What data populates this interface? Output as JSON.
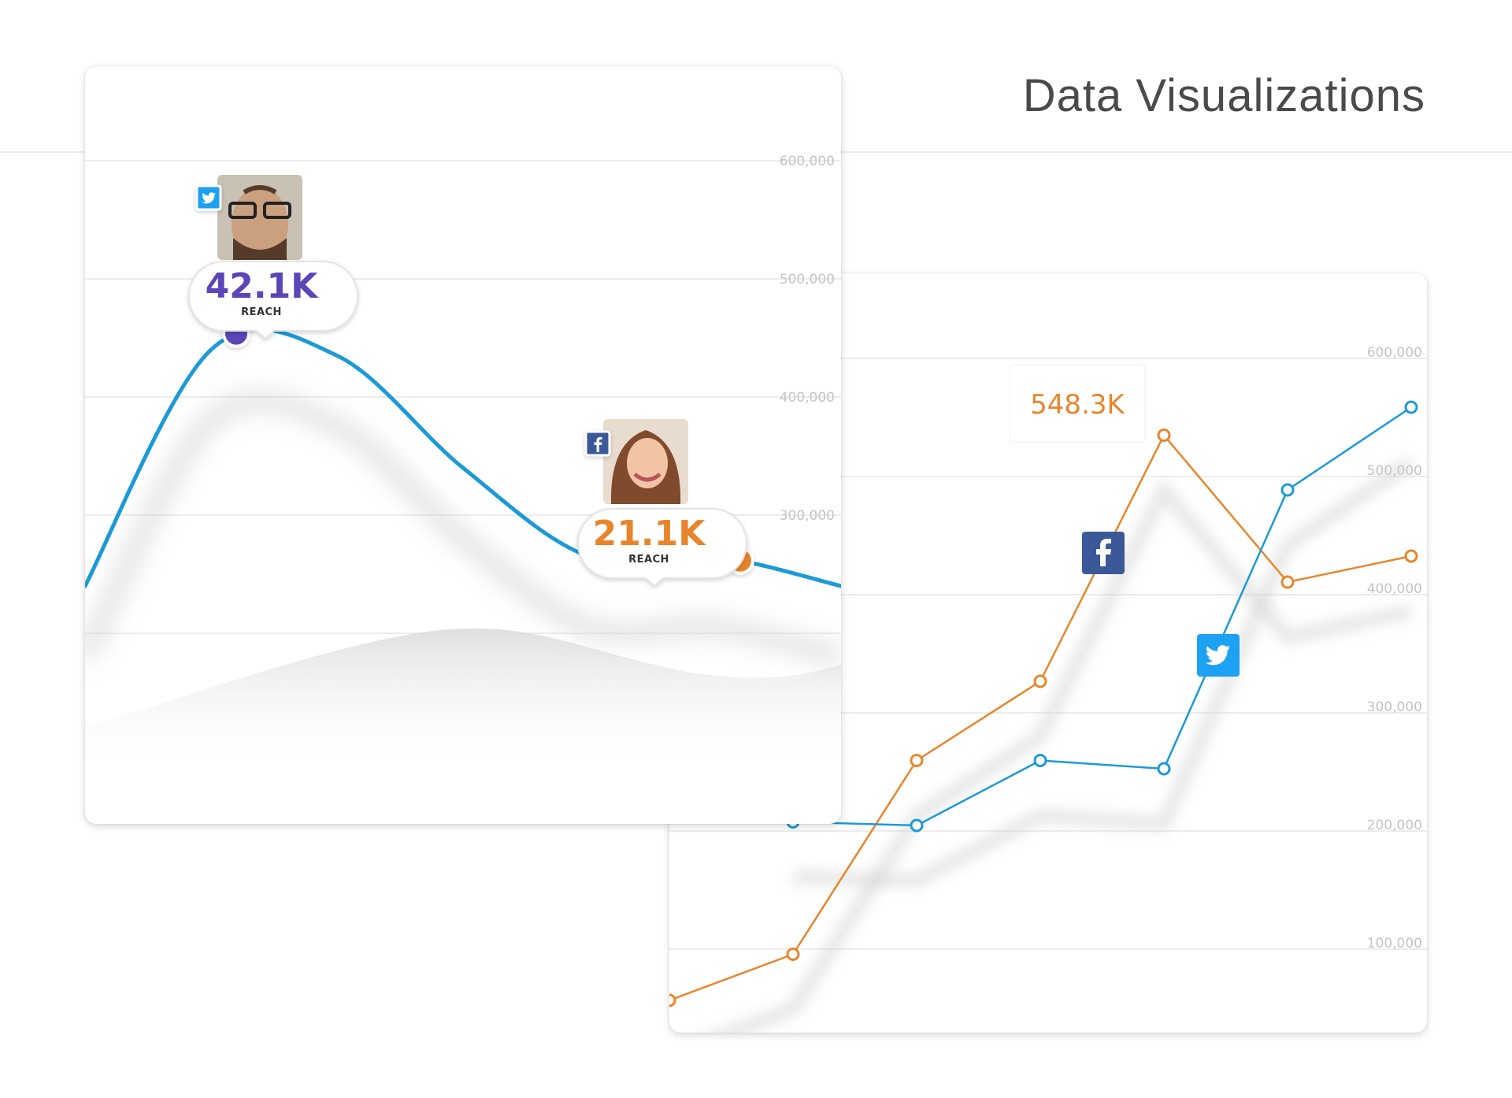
{
  "page": {
    "title": "Data Visualizations"
  },
  "colors": {
    "blue": "#1b9ad6",
    "orange": "#e8852a",
    "purple": "#5b45b8",
    "twitter": "#1da1f2",
    "facebook": "#3b5998",
    "grid": "#ececec",
    "tick": "#c4c4c4"
  },
  "chart_data": [
    {
      "type": "line",
      "title": "",
      "ylim": [
        200000,
        650000
      ],
      "y_ticks": [
        "600,000",
        "500,000",
        "400,000",
        "300,000"
      ],
      "grid": true,
      "series": [
        {
          "color": "#1b9ad6",
          "smooth": true,
          "x": [
            0,
            1,
            2,
            3,
            4,
            5,
            6
          ],
          "values": [
            240000,
            440000,
            435000,
            340000,
            265000,
            265000,
            240000
          ]
        }
      ],
      "annotations": [
        {
          "value": "42.1K",
          "label": "REACH",
          "network": "twitter",
          "avatar": "man-with-glasses",
          "color": "#5b45b8",
          "at_x": 1.2
        },
        {
          "value": "21.1K",
          "label": "REACH",
          "network": "facebook",
          "avatar": "smiling-woman",
          "color": "#e8852a",
          "at_x": 5.2
        }
      ]
    },
    {
      "type": "line",
      "title": "",
      "ylim": [
        50000,
        650000
      ],
      "y_ticks": [
        "600,000",
        "500,000",
        "400,000",
        "300,000",
        "200,000",
        "100,000"
      ],
      "grid": true,
      "series": [
        {
          "color": "#e8852a",
          "network": "facebook",
          "x": [
            0,
            1,
            2,
            3,
            4,
            5,
            6
          ],
          "values": [
            70000,
            109000,
            273000,
            340000,
            548300,
            424000,
            446000
          ]
        },
        {
          "color": "#1b9ad6",
          "network": "twitter",
          "x": [
            1,
            2,
            3,
            4,
            5,
            6
          ],
          "values": [
            221000,
            218000,
            273000,
            266000,
            502000,
            572000
          ]
        }
      ],
      "peak_label": "548.3K"
    }
  ]
}
